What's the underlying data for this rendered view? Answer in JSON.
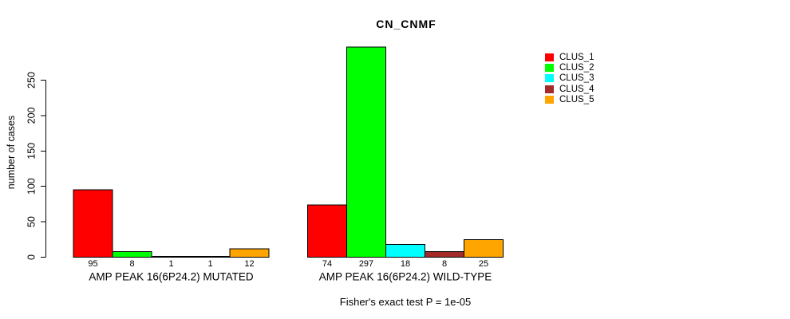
{
  "chart_data": {
    "type": "bar",
    "title": "CN_CNMF",
    "ylabel": "number of cases",
    "xlabel": "",
    "footnote": "Fisher's exact test P = 1e-05",
    "categories": [
      "AMP PEAK 16(6P24.2) MUTATED",
      "AMP PEAK 16(6P24.2) WILD-TYPE"
    ],
    "series": [
      {
        "name": "CLUS_1",
        "color": "#FF0000",
        "values": [
          95,
          74
        ]
      },
      {
        "name": "CLUS_2",
        "color": "#00FF00",
        "values": [
          8,
          297
        ]
      },
      {
        "name": "CLUS_3",
        "color": "#00FFFF",
        "values": [
          1,
          18
        ]
      },
      {
        "name": "CLUS_4",
        "color": "#A52A2A",
        "values": [
          1,
          8
        ]
      },
      {
        "name": "CLUS_5",
        "color": "#FFA500",
        "values": [
          12,
          25
        ]
      }
    ],
    "yticks": [
      0,
      50,
      100,
      150,
      200,
      250
    ],
    "ylim": [
      0,
      297
    ],
    "grid": false,
    "legend_position": "top-right",
    "bar_value_labels": true,
    "axis_color": "#000000",
    "bar_border_color": "#000000",
    "background_color": "#FFFFFF"
  }
}
